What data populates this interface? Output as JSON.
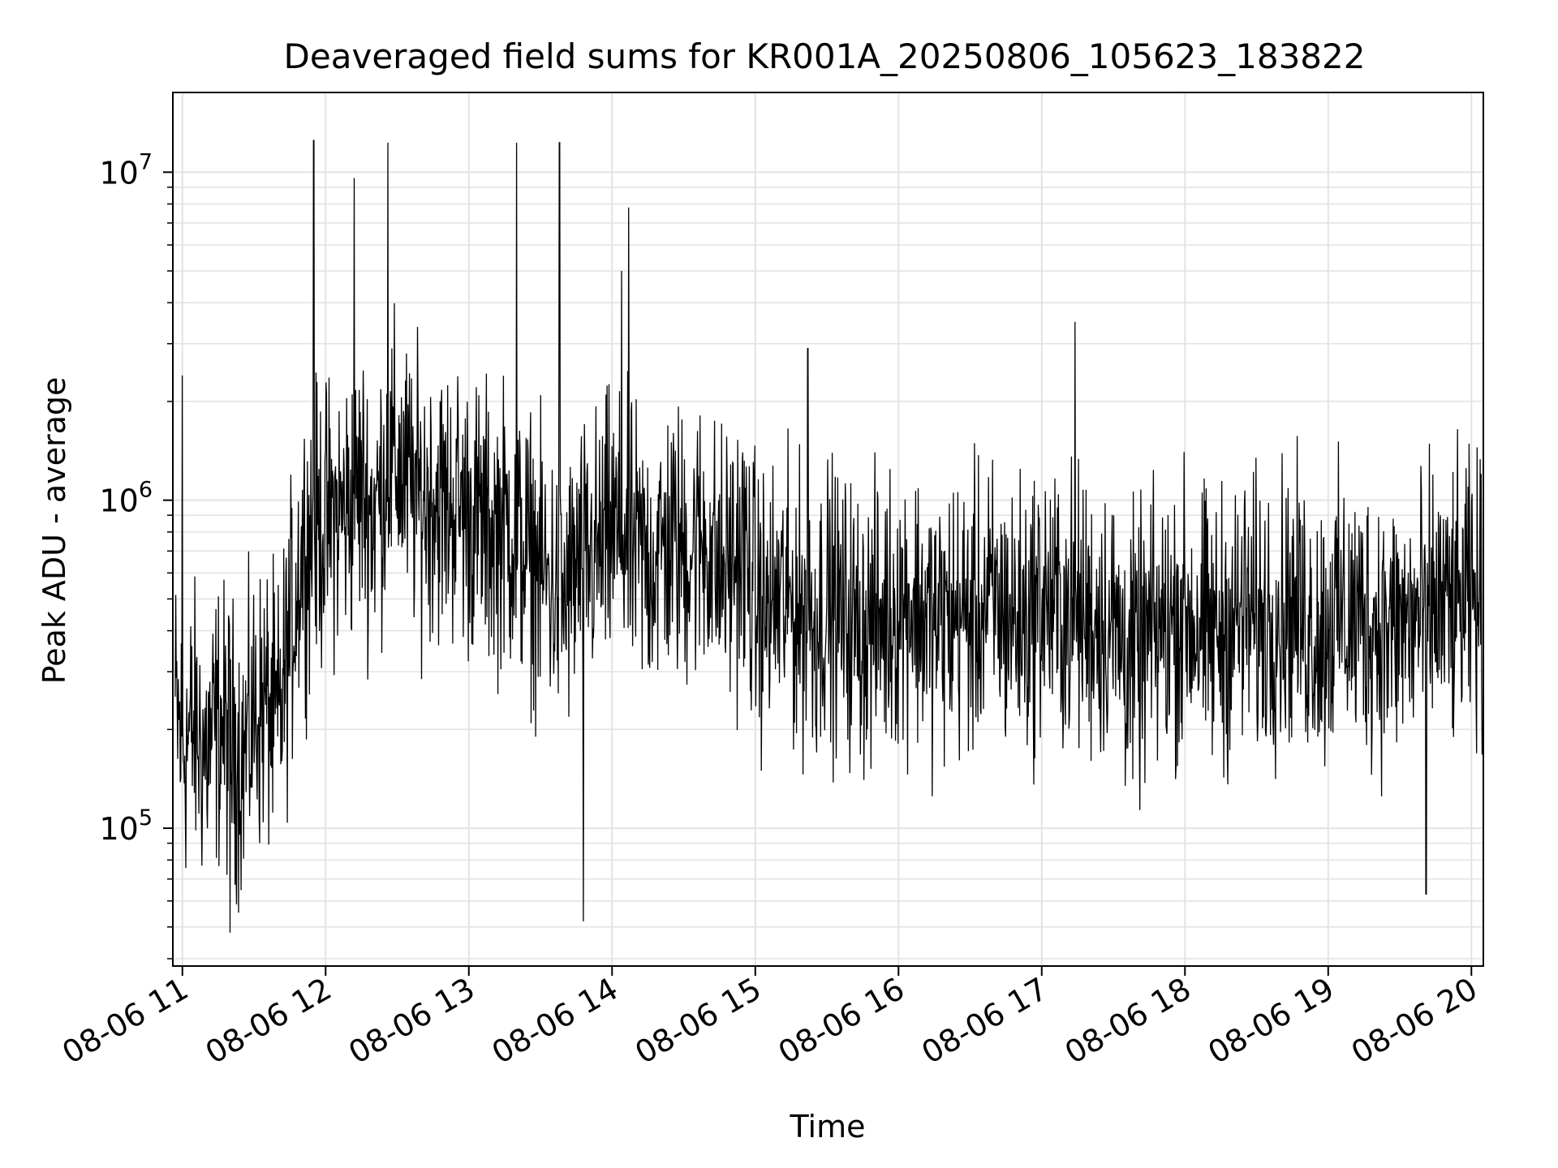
{
  "chart_data": {
    "type": "line",
    "title": "Deaveraged field sums for KR001A_20250806_105623_183822",
    "xlabel": "Time",
    "ylabel": "Peak ADU - average",
    "x_scale": "time",
    "y_scale": "log",
    "xlim": [
      "2025-08-06 10:56",
      "2025-08-06 20:05"
    ],
    "ylim": [
      38000,
      17500000
    ],
    "grid": true,
    "line_color": "#000000",
    "x_tick_labels": [
      "08-06 11",
      "08-06 12",
      "08-06 13",
      "08-06 14",
      "08-06 15",
      "08-06 16",
      "08-06 17",
      "08-06 18",
      "08-06 19",
      "08-06 20"
    ],
    "y_tick_labels": [
      {
        "value": 100000,
        "base": "10",
        "exp": "5"
      },
      {
        "value": 1000000,
        "base": "10",
        "exp": "6"
      },
      {
        "value": 10000000,
        "base": "10",
        "exp": "7"
      }
    ],
    "series": [
      {
        "x": [
          "2025-08-06 10:56",
          "2025-08-06 11:00",
          "2025-08-06 11:05",
          "2025-08-06 11:10",
          "2025-08-06 11:15",
          "2025-08-06 11:20",
          "2025-08-06 11:25",
          "2025-08-06 11:30",
          "2025-08-06 11:35",
          "2025-08-06 11:40",
          "2025-08-06 11:45",
          "2025-08-06 11:50",
          "2025-08-06 11:55",
          "2025-08-06 12:00",
          "2025-08-06 12:05",
          "2025-08-06 12:10",
          "2025-08-06 12:15",
          "2025-08-06 12:20",
          "2025-08-06 12:25",
          "2025-08-06 12:30",
          "2025-08-06 12:35",
          "2025-08-06 12:40",
          "2025-08-06 12:45",
          "2025-08-06 12:50",
          "2025-08-06 12:55",
          "2025-08-06 13:00",
          "2025-08-06 13:05",
          "2025-08-06 13:10",
          "2025-08-06 13:15",
          "2025-08-06 13:20",
          "2025-08-06 13:25",
          "2025-08-06 13:30",
          "2025-08-06 13:35",
          "2025-08-06 13:40",
          "2025-08-06 13:45",
          "2025-08-06 13:50",
          "2025-08-06 13:55",
          "2025-08-06 14:00",
          "2025-08-06 14:05",
          "2025-08-06 14:10",
          "2025-08-06 14:15",
          "2025-08-06 14:20",
          "2025-08-06 14:25",
          "2025-08-06 14:30",
          "2025-08-06 14:35",
          "2025-08-06 14:40",
          "2025-08-06 14:45",
          "2025-08-06 14:50",
          "2025-08-06 14:55",
          "2025-08-06 15:00",
          "2025-08-06 15:05",
          "2025-08-06 15:10",
          "2025-08-06 15:15",
          "2025-08-06 15:20",
          "2025-08-06 15:25",
          "2025-08-06 15:30",
          "2025-08-06 15:35",
          "2025-08-06 15:40",
          "2025-08-06 15:45",
          "2025-08-06 15:50",
          "2025-08-06 15:55",
          "2025-08-06 16:00",
          "2025-08-06 16:05",
          "2025-08-06 16:10",
          "2025-08-06 16:15",
          "2025-08-06 16:20",
          "2025-08-06 16:25",
          "2025-08-06 16:30",
          "2025-08-06 16:35",
          "2025-08-06 16:40",
          "2025-08-06 16:45",
          "2025-08-06 16:50",
          "2025-08-06 16:55",
          "2025-08-06 17:00",
          "2025-08-06 17:05",
          "2025-08-06 17:10",
          "2025-08-06 17:15",
          "2025-08-06 17:20",
          "2025-08-06 17:25",
          "2025-08-06 17:30",
          "2025-08-06 17:35",
          "2025-08-06 17:40",
          "2025-08-06 17:45",
          "2025-08-06 17:50",
          "2025-08-06 17:55",
          "2025-08-06 18:00",
          "2025-08-06 18:05",
          "2025-08-06 18:10",
          "2025-08-06 18:15",
          "2025-08-06 18:20",
          "2025-08-06 18:25",
          "2025-08-06 18:30",
          "2025-08-06 18:35",
          "2025-08-06 18:40",
          "2025-08-06 18:45",
          "2025-08-06 18:50",
          "2025-08-06 18:55",
          "2025-08-06 19:00",
          "2025-08-06 19:05",
          "2025-08-06 19:10",
          "2025-08-06 19:15",
          "2025-08-06 19:20",
          "2025-08-06 19:25",
          "2025-08-06 19:30",
          "2025-08-06 19:35",
          "2025-08-06 19:40",
          "2025-08-06 19:45",
          "2025-08-06 19:50",
          "2025-08-06 19:55",
          "2025-08-06 20:00",
          "2025-08-06 20:05"
        ],
        "y": [
          250000,
          180000,
          200000,
          170000,
          210000,
          190000,
          160000,
          220000,
          240000,
          200000,
          380000,
          700000,
          800000,
          850000,
          900000,
          950000,
          1100000,
          900000,
          1200000,
          1300000,
          1100000,
          1000000,
          1050000,
          950000,
          1000000,
          900000,
          850000,
          800000,
          850000,
          750000,
          700000,
          600000,
          550000,
          500000,
          600000,
          650000,
          700000,
          800000,
          750000,
          700000,
          650000,
          700000,
          750000,
          700000,
          750000,
          750000,
          600000,
          650000,
          700000,
          500000,
          450000,
          500000,
          480000,
          450000,
          420000,
          500000,
          450000,
          430000,
          400000,
          420000,
          450000,
          480000,
          500000,
          450000,
          420000,
          430000,
          450000,
          440000,
          460000,
          480000,
          450000,
          430000,
          440000,
          500000,
          470000,
          450000,
          460000,
          440000,
          430000,
          420000,
          350000,
          320000,
          380000,
          400000,
          430000,
          450000,
          420000,
          380000,
          400000,
          420000,
          450000,
          430000,
          440000,
          460000,
          480000,
          430000,
          400000,
          420000,
          450000,
          430000,
          440000,
          420000,
          400000,
          410000,
          420000,
          450000,
          480000,
          460000,
          470000,
          500000,
          480000
        ],
        "y_spread": "high-frequency noise of roughly ±0.5 decade around the local level",
        "spikes": [
          {
            "x": "2025-08-06 11:00",
            "y": 2400000
          },
          {
            "x": "2025-08-06 11:20",
            "y": 48000
          },
          {
            "x": "2025-08-06 11:55",
            "y": 12500000
          },
          {
            "x": "2025-08-06 12:12",
            "y": 9600000
          },
          {
            "x": "2025-08-06 12:26",
            "y": 12300000
          },
          {
            "x": "2025-08-06 13:20",
            "y": 12300000
          },
          {
            "x": "2025-08-06 13:38",
            "y": 12300000
          },
          {
            "x": "2025-08-06 13:48",
            "y": 52000
          },
          {
            "x": "2025-08-06 14:04",
            "y": 5000000
          },
          {
            "x": "2025-08-06 14:07",
            "y": 7800000
          },
          {
            "x": "2025-08-06 15:22",
            "y": 2900000
          },
          {
            "x": "2025-08-06 17:14",
            "y": 3500000
          },
          {
            "x": "2025-08-06 19:41",
            "y": 63000
          }
        ]
      }
    ]
  }
}
